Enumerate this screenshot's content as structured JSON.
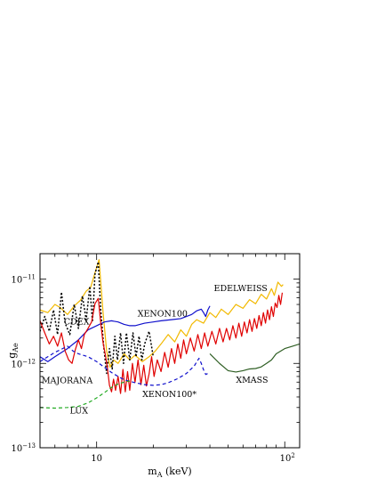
{
  "chart_data": {
    "type": "line",
    "title": "",
    "xlabel": {
      "main": "m",
      "sub": "A",
      "rest": " (keV)"
    },
    "ylabel": {
      "main": "g",
      "sub": "Ae"
    },
    "xscale": "log",
    "yscale": "log",
    "xlim": [
      5,
      120
    ],
    "ylim": [
      1e-13,
      2e-11
    ],
    "x_ticks": [
      {
        "value": 10,
        "label": "10"
      },
      {
        "value": 100,
        "label": "10",
        "sup": "2"
      }
    ],
    "y_ticks": [
      {
        "value": 1e-13,
        "label": "10",
        "sup": "−13"
      },
      {
        "value": 1e-12,
        "label": "10",
        "sup": "−12"
      },
      {
        "value": 1e-11,
        "label": "10",
        "sup": "−11"
      }
    ],
    "grid": false,
    "legend": "none",
    "series": [
      {
        "name": "EDELWEISS",
        "color": "#f2b900",
        "dash": "solid",
        "points": [
          [
            5,
            4.3e-12
          ],
          [
            5.5,
            4e-12
          ],
          [
            6.0,
            5e-12
          ],
          [
            6.4,
            4.6e-12
          ],
          [
            7.0,
            3.8e-12
          ],
          [
            7.6,
            4.8e-12
          ],
          [
            8.2,
            5.6e-12
          ],
          [
            8.8,
            7.2e-12
          ],
          [
            9.3,
            8e-12
          ],
          [
            9.7,
            1.1e-11
          ],
          [
            10.3,
            1.7e-11
          ],
          [
            10.8,
            4.2e-12
          ],
          [
            11.3,
            1.4e-12
          ],
          [
            11.8,
            9e-13
          ],
          [
            12.3,
            1.1e-12
          ],
          [
            13.0,
            1e-12
          ],
          [
            14.0,
            1.3e-12
          ],
          [
            15.0,
            1.1e-12
          ],
          [
            16.0,
            1.25e-12
          ],
          [
            17.5,
            1.05e-12
          ],
          [
            19.0,
            1.2e-12
          ],
          [
            20.5,
            1.4e-12
          ],
          [
            22,
            1.7e-12
          ],
          [
            24,
            2.2e-12
          ],
          [
            26,
            1.8e-12
          ],
          [
            28,
            2.5e-12
          ],
          [
            30,
            2.1e-12
          ],
          [
            32,
            2.9e-12
          ],
          [
            34,
            3.3e-12
          ],
          [
            37,
            3e-12
          ],
          [
            40,
            4e-12
          ],
          [
            43,
            3.5e-12
          ],
          [
            46,
            4.4e-12
          ],
          [
            50,
            3.8e-12
          ],
          [
            55,
            5e-12
          ],
          [
            60,
            4.5e-12
          ],
          [
            65,
            5.7e-12
          ],
          [
            70,
            5.1e-12
          ],
          [
            75,
            6.6e-12
          ],
          [
            80,
            5.8e-12
          ],
          [
            85,
            7.7e-12
          ],
          [
            88,
            6.4e-12
          ],
          [
            92,
            9.2e-12
          ],
          [
            96,
            8.2e-12
          ],
          [
            98,
            8.6e-12
          ]
        ]
      },
      {
        "name": "CDEX",
        "color": "#000000",
        "dash": "dotted",
        "points": [
          [
            5,
            2.4e-12
          ],
          [
            5.3,
            3.6e-12
          ],
          [
            5.6,
            2.4e-12
          ],
          [
            5.9,
            4.3e-12
          ],
          [
            6.2,
            2.2e-12
          ],
          [
            6.5,
            7e-12
          ],
          [
            6.8,
            3e-12
          ],
          [
            7.2,
            2.2e-12
          ],
          [
            7.6,
            5e-12
          ],
          [
            8.0,
            2.6e-12
          ],
          [
            8.4,
            6.3e-12
          ],
          [
            8.8,
            3.3e-12
          ],
          [
            9.2,
            8.2e-12
          ],
          [
            9.5,
            3.1e-12
          ],
          [
            9.8,
            1.15e-11
          ],
          [
            10.2,
            1.6e-11
          ],
          [
            10.5,
            4.5e-12
          ],
          [
            10.9,
            1.6e-12
          ],
          [
            11.3,
            7.6e-13
          ],
          [
            11.7,
            1.5e-12
          ],
          [
            12.1,
            8.6e-13
          ],
          [
            12.5,
            2.1e-12
          ],
          [
            12.9,
            1.1e-12
          ],
          [
            13.4,
            2.3e-12
          ],
          [
            13.9,
            1e-12
          ],
          [
            14.4,
            2.3e-12
          ],
          [
            15.0,
            1.1e-12
          ],
          [
            15.6,
            2.3e-12
          ],
          [
            16.2,
            1.2e-12
          ],
          [
            16.8,
            2.1e-12
          ],
          [
            17.4,
            1.1e-12
          ],
          [
            18.0,
            1.7e-12
          ],
          [
            19.0,
            2.4e-12
          ],
          [
            20.0,
            1.2e-12
          ]
        ]
      },
      {
        "name": "XENON100",
        "color": "#1010cc",
        "dash": "solid",
        "points": [
          [
            5,
            1.2e-12
          ],
          [
            5.5,
            1.05e-12
          ],
          [
            6,
            1.2e-12
          ],
          [
            7,
            1.5e-12
          ],
          [
            8,
            1.9e-12
          ],
          [
            9,
            2.5e-12
          ],
          [
            10,
            2.8e-12
          ],
          [
            11,
            3.1e-12
          ],
          [
            12,
            3.2e-12
          ],
          [
            13,
            3.1e-12
          ],
          [
            14,
            2.9e-12
          ],
          [
            15,
            2.8e-12
          ],
          [
            16,
            2.8e-12
          ],
          [
            17,
            2.9e-12
          ],
          [
            18,
            3e-12
          ],
          [
            20,
            3.1e-12
          ],
          [
            22,
            3.2e-12
          ],
          [
            25,
            3.3e-12
          ],
          [
            28,
            3.4e-12
          ],
          [
            30,
            3.6e-12
          ],
          [
            32,
            3.8e-12
          ],
          [
            34,
            4.2e-12
          ],
          [
            36,
            4.4e-12
          ],
          [
            37,
            4e-12
          ],
          [
            38,
            3.6e-12
          ],
          [
            39,
            4.3e-12
          ],
          [
            40,
            4.8e-12
          ]
        ]
      },
      {
        "name": "MAJORANA",
        "color": "#e00000",
        "dash": "solid",
        "points": [
          [
            5,
            3.2e-12
          ],
          [
            5.3,
            2.3e-12
          ],
          [
            5.6,
            1.7e-12
          ],
          [
            5.9,
            2.1e-12
          ],
          [
            6.2,
            1.6e-12
          ],
          [
            6.5,
            2.3e-12
          ],
          [
            6.8,
            1.4e-12
          ],
          [
            7.1,
            1.1e-12
          ],
          [
            7.4,
            1e-12
          ],
          [
            7.7,
            1.45e-12
          ],
          [
            8.0,
            1.9e-12
          ],
          [
            8.3,
            1.5e-12
          ],
          [
            8.6,
            2.2e-12
          ],
          [
            9.0,
            2.6e-12
          ],
          [
            9.4,
            3.1e-12
          ],
          [
            9.8,
            5.1e-12
          ],
          [
            10.2,
            5.9e-12
          ],
          [
            10.5,
            3.1e-12
          ],
          [
            10.8,
            1.8e-12
          ],
          [
            11.1,
            1.3e-12
          ],
          [
            11.4,
            9e-13
          ],
          [
            11.7,
            5.5e-13
          ],
          [
            12.0,
            4.6e-13
          ],
          [
            12.3,
            6.5e-13
          ],
          [
            12.6,
            4.8e-13
          ],
          [
            13.0,
            7e-13
          ],
          [
            13.4,
            4.4e-13
          ],
          [
            13.8,
            8.5e-13
          ],
          [
            14.2,
            4.6e-13
          ],
          [
            14.6,
            8e-13
          ],
          [
            15.0,
            4.8e-13
          ],
          [
            15.5,
            1e-12
          ],
          [
            16.0,
            6e-13
          ],
          [
            16.6,
            1.1e-12
          ],
          [
            17.2,
            5.6e-13
          ],
          [
            17.8,
            9.5e-13
          ],
          [
            18.4,
            5.4e-13
          ],
          [
            19.0,
            7.5e-13
          ],
          [
            19.6,
            1.2e-12
          ],
          [
            20.2,
            7e-13
          ],
          [
            21,
            1.1e-12
          ],
          [
            22,
            8e-13
          ],
          [
            23,
            1.35e-12
          ],
          [
            24,
            9e-13
          ],
          [
            25,
            1.5e-12
          ],
          [
            26,
            1e-12
          ],
          [
            27,
            1.7e-12
          ],
          [
            28,
            1.15e-12
          ],
          [
            29,
            1.9e-12
          ],
          [
            30,
            1.3e-12
          ],
          [
            31.5,
            2e-12
          ],
          [
            33,
            1.4e-12
          ],
          [
            34.5,
            2.2e-12
          ],
          [
            36,
            1.5e-12
          ],
          [
            37.5,
            2.3e-12
          ],
          [
            39,
            1.6e-12
          ],
          [
            41,
            2.4e-12
          ],
          [
            43,
            1.7e-12
          ],
          [
            45,
            2.6e-12
          ],
          [
            47,
            1.8e-12
          ],
          [
            49,
            2.6e-12
          ],
          [
            51,
            1.9e-12
          ],
          [
            53,
            2.8e-12
          ],
          [
            55,
            2e-12
          ],
          [
            57,
            3e-12
          ],
          [
            59,
            2.1e-12
          ],
          [
            61,
            3.1e-12
          ],
          [
            63,
            2.3e-12
          ],
          [
            65,
            3.3e-12
          ],
          [
            67,
            2.4e-12
          ],
          [
            69,
            3.4e-12
          ],
          [
            71,
            2.6e-12
          ],
          [
            73,
            3.7e-12
          ],
          [
            75,
            2.8e-12
          ],
          [
            77,
            4e-12
          ],
          [
            79,
            3e-12
          ],
          [
            81,
            4.3e-12
          ],
          [
            83,
            3.3e-12
          ],
          [
            85,
            4.7e-12
          ],
          [
            87,
            3.6e-12
          ],
          [
            89,
            5.2e-12
          ],
          [
            91,
            4.6e-12
          ],
          [
            93,
            6.4e-12
          ],
          [
            95,
            5e-12
          ],
          [
            97,
            6.9e-12
          ]
        ]
      },
      {
        "name": "XENON100*",
        "color": "#1010cc",
        "dash": "dashed",
        "points": [
          [
            5,
            1.05e-12
          ],
          [
            5.5,
            1.2e-12
          ],
          [
            6,
            1.35e-12
          ],
          [
            7,
            1.6e-12
          ],
          [
            7.5,
            1.4e-12
          ],
          [
            8,
            1.3e-12
          ],
          [
            9,
            1.2e-12
          ],
          [
            10,
            1.05e-12
          ],
          [
            11,
            9e-13
          ],
          [
            12,
            7.8e-13
          ],
          [
            13,
            7e-13
          ],
          [
            14,
            6.4e-13
          ],
          [
            16,
            5.9e-13
          ],
          [
            18,
            5.6e-13
          ],
          [
            20,
            5.5e-13
          ],
          [
            22,
            5.6e-13
          ],
          [
            24,
            5.9e-13
          ],
          [
            27,
            6.6e-13
          ],
          [
            30,
            7.6e-13
          ],
          [
            33,
            9.3e-13
          ],
          [
            35,
            1.15e-12
          ],
          [
            36,
            1e-12
          ],
          [
            37,
            8.4e-13
          ],
          [
            38,
            7.4e-13
          ],
          [
            40,
            7.8e-13
          ]
        ]
      },
      {
        "name": "LUX",
        "color": "#22aa22",
        "dash": "dashed",
        "points": [
          [
            5,
            3e-13
          ],
          [
            6,
            2.95e-13
          ],
          [
            7,
            3e-13
          ],
          [
            8,
            3.1e-13
          ],
          [
            9,
            3.4e-13
          ],
          [
            10,
            3.9e-13
          ],
          [
            11,
            4.5e-13
          ],
          [
            12,
            5.2e-13
          ],
          [
            13,
            5.7e-13
          ],
          [
            14,
            6e-13
          ],
          [
            15,
            6.2e-13
          ]
        ]
      },
      {
        "name": "XMASS",
        "color": "#2e5e23",
        "dash": "solid",
        "points": [
          [
            40,
            1.3e-12
          ],
          [
            45,
            1e-12
          ],
          [
            50,
            8.2e-13
          ],
          [
            55,
            7.9e-13
          ],
          [
            60,
            8.2e-13
          ],
          [
            65,
            8.6e-13
          ],
          [
            70,
            8.7e-13
          ],
          [
            75,
            9.1e-13
          ],
          [
            80,
            1e-12
          ],
          [
            85,
            1.1e-12
          ],
          [
            90,
            1.3e-12
          ],
          [
            100,
            1.5e-12
          ],
          [
            110,
            1.6e-12
          ],
          [
            120,
            1.7e-12
          ]
        ]
      }
    ],
    "annotations": [
      {
        "text": "EDELWEISS",
        "x": 42,
        "y": 7.2e-12
      },
      {
        "text": "CDEX",
        "x": 6.7,
        "y": 2.9e-12
      },
      {
        "text": "XENON100",
        "x": 16.5,
        "y": 3.6e-12
      },
      {
        "text": "MAJORANA",
        "x": 5.1,
        "y": 5.8e-13
      },
      {
        "text": "XENON100*",
        "x": 17.5,
        "y": 4e-13
      },
      {
        "text": "LUX",
        "x": 7.2,
        "y": 2.55e-13
      },
      {
        "text": "XMASS",
        "x": 55,
        "y": 5.9e-13
      }
    ]
  }
}
